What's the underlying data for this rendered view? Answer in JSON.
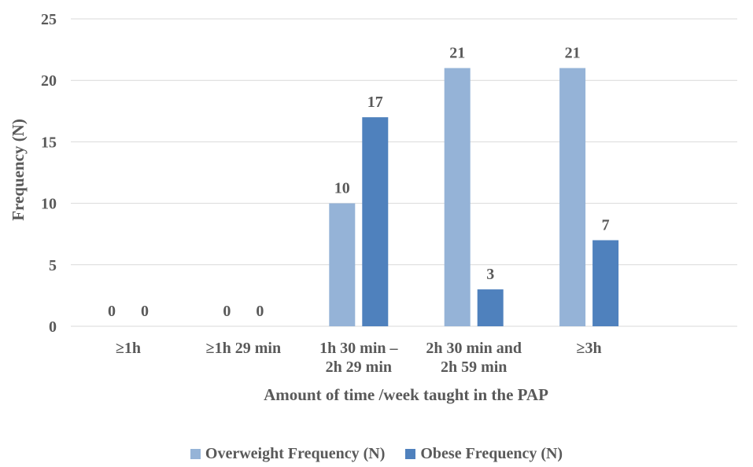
{
  "chart_data": {
    "type": "bar",
    "title": "",
    "xlabel": "Amount of time /week taught in the PAP",
    "ylabel": "Frequency (N)",
    "ylim": [
      0,
      25
    ],
    "yticks": [
      0,
      5,
      10,
      15,
      20,
      25
    ],
    "grid": true,
    "legend_position": "bottom",
    "categories": [
      [
        "≥1h"
      ],
      [
        "≥1h 29 min"
      ],
      [
        "1h 30 min –",
        "2h 29 min"
      ],
      [
        "2h 30 min and",
        "2h 59 min"
      ],
      [
        "≥3h"
      ]
    ],
    "series": [
      {
        "name": "Overweight Frequency (N)",
        "color": "#95b3d7",
        "values": [
          0,
          0,
          10,
          21,
          21
        ]
      },
      {
        "name": "Obese Frequency (N)",
        "color": "#4f81bd",
        "values": [
          0,
          0,
          17,
          3,
          7
        ]
      }
    ]
  }
}
